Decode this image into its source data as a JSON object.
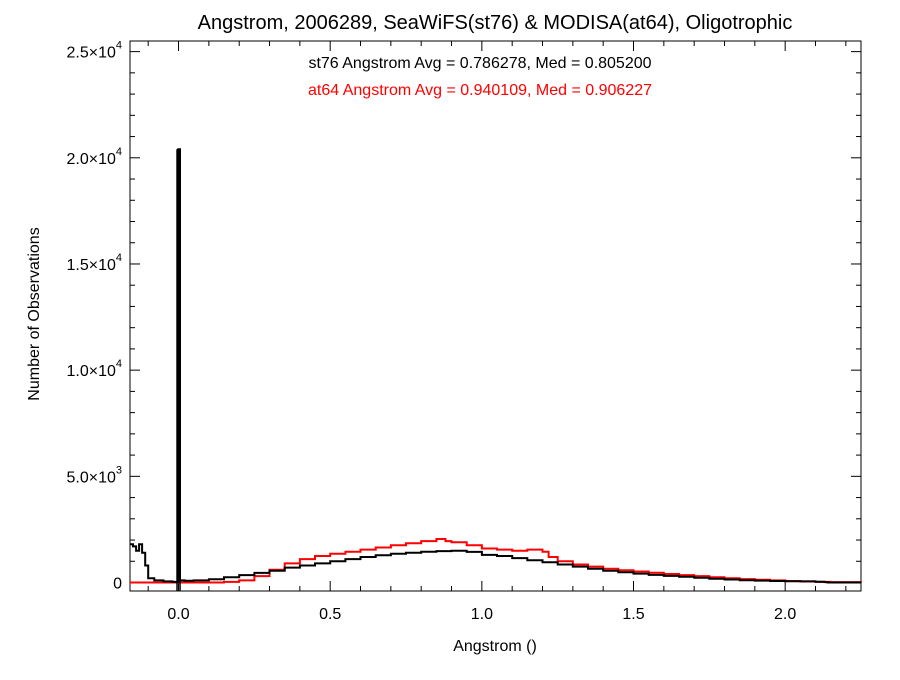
{
  "chart_data": {
    "type": "histogram",
    "title": "Angstrom, 2006289, SeaWiFS(st76) & MODISA(at64), Oligotrophic",
    "xlabel": "Angstrom ()",
    "ylabel": "Number of Observations",
    "xlim": [
      -0.16,
      2.25
    ],
    "ylim": [
      -400,
      25500
    ],
    "xticks": [
      {
        "value": 0.0,
        "label": "0.0"
      },
      {
        "value": 0.5,
        "label": "0.5"
      },
      {
        "value": 1.0,
        "label": "1.0"
      },
      {
        "value": 1.5,
        "label": "1.5"
      },
      {
        "value": 2.0,
        "label": "2.0"
      }
    ],
    "yticks": [
      {
        "value": 0,
        "mant": "0",
        "exp": ""
      },
      {
        "value": 5000,
        "mant": "5.0×10",
        "exp": "3"
      },
      {
        "value": 10000,
        "mant": "1.0×10",
        "exp": "4"
      },
      {
        "value": 15000,
        "mant": "1.5×10",
        "exp": "4"
      },
      {
        "value": 20000,
        "mant": "2.0×10",
        "exp": "4"
      },
      {
        "value": 25000,
        "mant": "2.5×10",
        "exp": "4"
      }
    ],
    "annotations": [
      {
        "text": "st76 Angstrom Avg = 0.786278, Med = 0.805200",
        "color": "#000000"
      },
      {
        "text": "at64 Angstrom Avg = 0.940109, Med = 0.906227",
        "color": "#ff0000"
      }
    ],
    "series": [
      {
        "name": "st76",
        "color": "#000000",
        "x": [
          -0.16,
          -0.15,
          -0.14,
          -0.13,
          -0.12,
          -0.11,
          -0.1,
          -0.08,
          -0.05,
          -0.02,
          -0.005,
          0.0,
          0.005,
          0.02,
          0.05,
          0.1,
          0.15,
          0.2,
          0.25,
          0.3,
          0.35,
          0.4,
          0.45,
          0.5,
          0.55,
          0.6,
          0.65,
          0.7,
          0.75,
          0.8,
          0.85,
          0.9,
          0.95,
          1.0,
          1.05,
          1.1,
          1.15,
          1.2,
          1.25,
          1.3,
          1.35,
          1.4,
          1.45,
          1.5,
          1.55,
          1.6,
          1.65,
          1.7,
          1.75,
          1.8,
          1.85,
          1.9,
          1.95,
          2.0,
          2.05,
          2.1,
          2.13,
          2.14,
          2.25
        ],
        "y": [
          1800,
          1700,
          1500,
          1800,
          1400,
          800,
          200,
          100,
          50,
          30,
          20,
          20400,
          100,
          80,
          100,
          150,
          250,
          350,
          450,
          550,
          700,
          800,
          900,
          1000,
          1100,
          1200,
          1280,
          1350,
          1400,
          1450,
          1480,
          1500,
          1440,
          1300,
          1250,
          1150,
          1050,
          950,
          850,
          750,
          650,
          550,
          480,
          420,
          360,
          310,
          270,
          220,
          180,
          140,
          110,
          90,
          70,
          60,
          50,
          40,
          20,
          0,
          0
        ]
      },
      {
        "name": "at64",
        "color": "#ff0000",
        "x": [
          -0.16,
          0.0,
          0.05,
          0.1,
          0.15,
          0.2,
          0.25,
          0.3,
          0.35,
          0.4,
          0.45,
          0.5,
          0.55,
          0.6,
          0.65,
          0.7,
          0.75,
          0.8,
          0.85,
          0.88,
          0.9,
          0.95,
          1.0,
          1.05,
          1.1,
          1.15,
          1.2,
          1.22,
          1.25,
          1.3,
          1.35,
          1.4,
          1.45,
          1.5,
          1.55,
          1.6,
          1.65,
          1.7,
          1.75,
          1.8,
          1.85,
          1.9,
          1.95,
          2.0,
          2.05,
          2.1,
          2.15,
          2.25
        ],
        "y": [
          0,
          0,
          0,
          0,
          30,
          100,
          300,
          600,
          900,
          1100,
          1250,
          1350,
          1450,
          1550,
          1650,
          1750,
          1850,
          1950,
          2050,
          1950,
          1900,
          1750,
          1600,
          1550,
          1500,
          1550,
          1450,
          1200,
          1000,
          850,
          750,
          650,
          580,
          520,
          460,
          400,
          350,
          300,
          250,
          200,
          160,
          130,
          100,
          70,
          50,
          30,
          20,
          0
        ]
      }
    ]
  }
}
